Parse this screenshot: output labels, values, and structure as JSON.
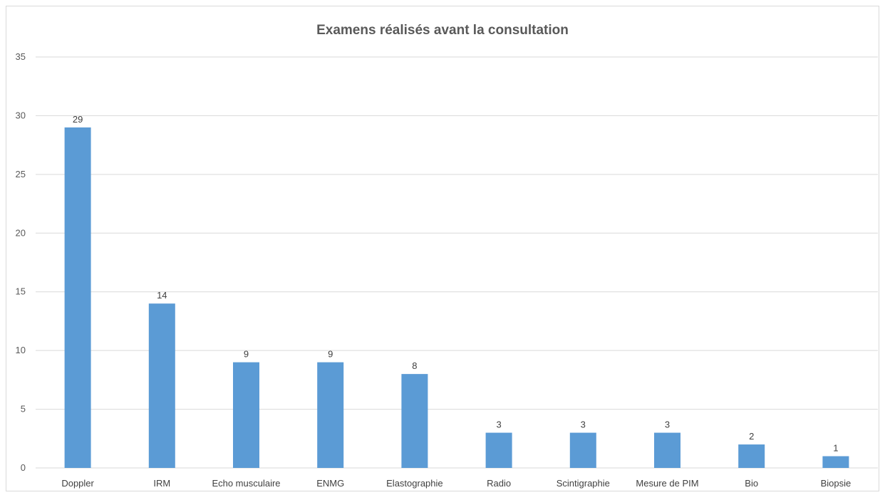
{
  "chart_data": {
    "type": "bar",
    "title": "Examens réalisés avant la consultation",
    "categories": [
      "Doppler",
      "IRM",
      "Echo musculaire",
      "ENMG",
      "Elastographie",
      "Radio",
      "Scintigraphie",
      "Mesure de PIM",
      "Bio",
      "Biopsie"
    ],
    "values": [
      29,
      14,
      9,
      9,
      8,
      3,
      3,
      3,
      2,
      1
    ],
    "data_labels": [
      "29",
      "14",
      "9",
      "9",
      "8",
      "3",
      "3",
      "3",
      "2",
      "1"
    ],
    "ylim": [
      0,
      35
    ],
    "yticks": [
      0,
      5,
      10,
      15,
      20,
      25,
      30,
      35
    ],
    "grid": true,
    "bar_color": "#5b9bd5",
    "gridline_color": "#d9d9d9"
  }
}
